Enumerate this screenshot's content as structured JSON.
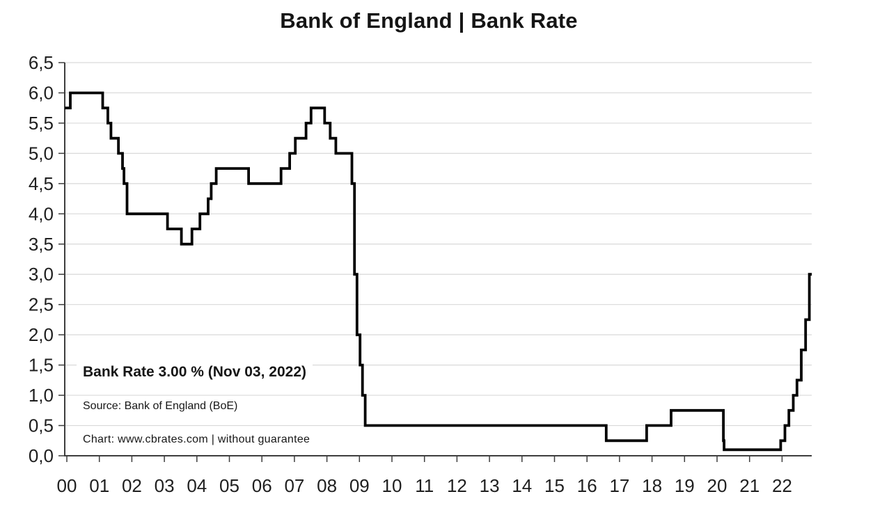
{
  "page": {
    "background": "#ffffff"
  },
  "chart_data": {
    "type": "line",
    "step": true,
    "title": "Bank of England | Bank Rate",
    "xlabel": "",
    "ylabel": "",
    "grid": true,
    "legend": "none",
    "ylim": [
      0,
      6.5
    ],
    "y_tick_step": 0.5,
    "y_tick_labels_top_down": [
      "6,5",
      "6,0",
      "5,5",
      "5,0",
      "4,5",
      "4,0",
      "3,5",
      "3,0",
      "2,5",
      "2,0",
      "1,5",
      "1,0",
      "0,5",
      "0,0"
    ],
    "x_tick_labels": [
      "00",
      "01",
      "02",
      "03",
      "04",
      "05",
      "06",
      "07",
      "08",
      "09",
      "10",
      "11",
      "12",
      "13",
      "14",
      "15",
      "16",
      "17",
      "18",
      "19",
      "20",
      "21",
      "22"
    ],
    "x_range_years": [
      2000,
      2023
    ],
    "line_color": "#000000",
    "grid_color": "#d9d9d9",
    "axis_color": "#3d3d3d",
    "series": [
      {
        "name": "Bank Rate (%)",
        "points": [
          {
            "date": "2000-01-01",
            "rate": 5.75
          },
          {
            "date": "2000-02-10",
            "rate": 6.0
          },
          {
            "date": "2001-02-08",
            "rate": 5.75
          },
          {
            "date": "2001-04-05",
            "rate": 5.5
          },
          {
            "date": "2001-05-10",
            "rate": 5.25
          },
          {
            "date": "2001-08-02",
            "rate": 5.0
          },
          {
            "date": "2001-09-18",
            "rate": 4.75
          },
          {
            "date": "2001-10-04",
            "rate": 4.5
          },
          {
            "date": "2001-11-08",
            "rate": 4.0
          },
          {
            "date": "2003-02-06",
            "rate": 3.75
          },
          {
            "date": "2003-07-10",
            "rate": 3.5
          },
          {
            "date": "2003-11-06",
            "rate": 3.75
          },
          {
            "date": "2004-02-05",
            "rate": 4.0
          },
          {
            "date": "2004-05-06",
            "rate": 4.25
          },
          {
            "date": "2004-06-10",
            "rate": 4.5
          },
          {
            "date": "2004-08-05",
            "rate": 4.75
          },
          {
            "date": "2005-08-04",
            "rate": 4.5
          },
          {
            "date": "2006-08-03",
            "rate": 4.75
          },
          {
            "date": "2006-11-09",
            "rate": 5.0
          },
          {
            "date": "2007-01-11",
            "rate": 5.25
          },
          {
            "date": "2007-05-10",
            "rate": 5.5
          },
          {
            "date": "2007-07-05",
            "rate": 5.75
          },
          {
            "date": "2007-12-06",
            "rate": 5.5
          },
          {
            "date": "2008-02-07",
            "rate": 5.25
          },
          {
            "date": "2008-04-10",
            "rate": 5.0
          },
          {
            "date": "2008-10-08",
            "rate": 4.5
          },
          {
            "date": "2008-11-06",
            "rate": 3.0
          },
          {
            "date": "2008-12-04",
            "rate": 2.0
          },
          {
            "date": "2009-01-08",
            "rate": 1.5
          },
          {
            "date": "2009-02-05",
            "rate": 1.0
          },
          {
            "date": "2009-03-05",
            "rate": 0.5
          },
          {
            "date": "2016-08-04",
            "rate": 0.25
          },
          {
            "date": "2017-11-02",
            "rate": 0.5
          },
          {
            "date": "2018-08-02",
            "rate": 0.75
          },
          {
            "date": "2020-03-11",
            "rate": 0.25
          },
          {
            "date": "2020-03-19",
            "rate": 0.1
          },
          {
            "date": "2021-12-16",
            "rate": 0.25
          },
          {
            "date": "2022-02-03",
            "rate": 0.5
          },
          {
            "date": "2022-03-17",
            "rate": 0.75
          },
          {
            "date": "2022-05-05",
            "rate": 1.0
          },
          {
            "date": "2022-06-16",
            "rate": 1.25
          },
          {
            "date": "2022-08-04",
            "rate": 1.75
          },
          {
            "date": "2022-09-22",
            "rate": 2.25
          },
          {
            "date": "2022-11-03",
            "rate": 3.0
          }
        ]
      }
    ]
  },
  "annotations": {
    "current_rate": "Bank Rate 3.00 % (Nov 03, 2022)",
    "source": "Source: Bank of England (BoE)",
    "credit": "Chart: www.cbrates.com | without guarantee"
  }
}
